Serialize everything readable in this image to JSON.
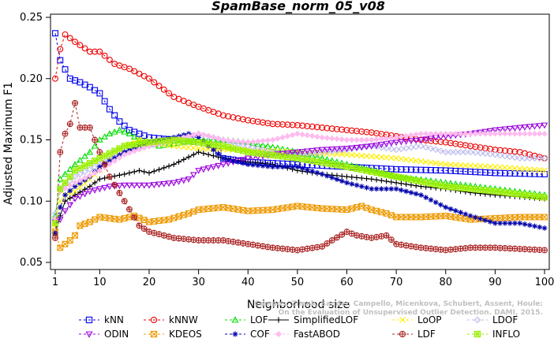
{
  "chart_data": {
    "type": "line",
    "title": "SpamBase_norm_05_v08",
    "xlabel": "Neighborhood size",
    "ylabel": "Adjusted Maximum F1",
    "xlim": [
      1,
      100
    ],
    "ylim": [
      0.05,
      0.25
    ],
    "xticks": [
      1,
      10,
      20,
      30,
      40,
      50,
      60,
      70,
      80,
      90,
      100
    ],
    "yticks": [
      0.05,
      0.1,
      0.15,
      0.2,
      0.25
    ],
    "ytick_labels": [
      "0.05",
      "0.10",
      "0.15",
      "0.20",
      "0.25"
    ],
    "legend_position": "bottom",
    "grid": false,
    "series": [
      {
        "name": "kNN",
        "color": "#0000ee",
        "marker": "square",
        "dash": true,
        "knots": [
          [
            1,
            0.237
          ],
          [
            2,
            0.215
          ],
          [
            4,
            0.2
          ],
          [
            6,
            0.197
          ],
          [
            8,
            0.193
          ],
          [
            10,
            0.188
          ],
          [
            12,
            0.175
          ],
          [
            14,
            0.165
          ],
          [
            16,
            0.158
          ],
          [
            20,
            0.152
          ],
          [
            25,
            0.15
          ],
          [
            30,
            0.148
          ],
          [
            33,
            0.146
          ],
          [
            35,
            0.135
          ],
          [
            40,
            0.132
          ],
          [
            50,
            0.13
          ],
          [
            60,
            0.128
          ],
          [
            70,
            0.126
          ],
          [
            80,
            0.125
          ],
          [
            90,
            0.123
          ],
          [
            100,
            0.122
          ]
        ]
      },
      {
        "name": "kNNW",
        "color": "#ee0000",
        "marker": "circle",
        "dash": true,
        "knots": [
          [
            1,
            0.2
          ],
          [
            2,
            0.224
          ],
          [
            3,
            0.236
          ],
          [
            5,
            0.23
          ],
          [
            8,
            0.222
          ],
          [
            10,
            0.222
          ],
          [
            13,
            0.212
          ],
          [
            16,
            0.208
          ],
          [
            20,
            0.2
          ],
          [
            25,
            0.185
          ],
          [
            30,
            0.177
          ],
          [
            35,
            0.17
          ],
          [
            40,
            0.166
          ],
          [
            45,
            0.163
          ],
          [
            50,
            0.162
          ],
          [
            55,
            0.16
          ],
          [
            60,
            0.158
          ],
          [
            65,
            0.156
          ],
          [
            70,
            0.153
          ],
          [
            75,
            0.15
          ],
          [
            80,
            0.148
          ],
          [
            85,
            0.145
          ],
          [
            90,
            0.142
          ],
          [
            95,
            0.14
          ],
          [
            100,
            0.135
          ]
        ]
      },
      {
        "name": "LOF",
        "color": "#00dd00",
        "marker": "triangle-up",
        "dash": true,
        "knots": [
          [
            1,
            0.088
          ],
          [
            2,
            0.118
          ],
          [
            3,
            0.122
          ],
          [
            5,
            0.13
          ],
          [
            8,
            0.14
          ],
          [
            10,
            0.15
          ],
          [
            12,
            0.155
          ],
          [
            14,
            0.158
          ],
          [
            16,
            0.155
          ],
          [
            18,
            0.15
          ],
          [
            22,
            0.145
          ],
          [
            30,
            0.15
          ],
          [
            35,
            0.15
          ],
          [
            40,
            0.148
          ],
          [
            50,
            0.14
          ],
          [
            60,
            0.13
          ],
          [
            70,
            0.12
          ],
          [
            80,
            0.115
          ],
          [
            90,
            0.11
          ],
          [
            100,
            0.105
          ]
        ]
      },
      {
        "name": "SimplifiedLOF",
        "color": "#000000",
        "marker": "plus",
        "dash": false,
        "knots": [
          [
            1,
            0.072
          ],
          [
            2,
            0.088
          ],
          [
            3,
            0.1
          ],
          [
            5,
            0.105
          ],
          [
            8,
            0.112
          ],
          [
            10,
            0.118
          ],
          [
            15,
            0.122
          ],
          [
            18,
            0.125
          ],
          [
            20,
            0.123
          ],
          [
            25,
            0.13
          ],
          [
            30,
            0.14
          ],
          [
            35,
            0.135
          ],
          [
            40,
            0.132
          ],
          [
            45,
            0.13
          ],
          [
            50,
            0.125
          ],
          [
            55,
            0.122
          ],
          [
            60,
            0.12
          ],
          [
            65,
            0.118
          ],
          [
            70,
            0.115
          ],
          [
            75,
            0.112
          ],
          [
            80,
            0.11
          ],
          [
            85,
            0.107
          ],
          [
            90,
            0.105
          ],
          [
            100,
            0.102
          ]
        ]
      },
      {
        "name": "LoOP",
        "color": "#ffee00",
        "marker": "cross",
        "dash": true,
        "knots": [
          [
            1,
            0.08
          ],
          [
            2,
            0.1
          ],
          [
            3,
            0.105
          ],
          [
            5,
            0.108
          ],
          [
            8,
            0.118
          ],
          [
            10,
            0.125
          ],
          [
            12,
            0.135
          ],
          [
            15,
            0.145
          ],
          [
            18,
            0.15
          ],
          [
            20,
            0.148
          ],
          [
            25,
            0.145
          ],
          [
            30,
            0.143
          ],
          [
            35,
            0.142
          ],
          [
            40,
            0.142
          ],
          [
            50,
            0.14
          ],
          [
            60,
            0.138
          ],
          [
            70,
            0.135
          ],
          [
            80,
            0.13
          ],
          [
            90,
            0.128
          ],
          [
            100,
            0.125
          ]
        ]
      },
      {
        "name": "LDOF",
        "color": "#bbbbee",
        "marker": "diamond",
        "dash": true,
        "knots": [
          [
            1,
            0.09
          ],
          [
            2,
            0.11
          ],
          [
            5,
            0.12
          ],
          [
            10,
            0.13
          ],
          [
            15,
            0.14
          ],
          [
            20,
            0.145
          ],
          [
            25,
            0.15
          ],
          [
            30,
            0.155
          ],
          [
            35,
            0.15
          ],
          [
            40,
            0.145
          ],
          [
            45,
            0.14
          ],
          [
            50,
            0.138
          ],
          [
            55,
            0.14
          ],
          [
            60,
            0.142
          ],
          [
            65,
            0.145
          ],
          [
            70,
            0.142
          ],
          [
            75,
            0.145
          ],
          [
            80,
            0.14
          ],
          [
            85,
            0.14
          ],
          [
            90,
            0.138
          ],
          [
            95,
            0.135
          ],
          [
            100,
            0.135
          ]
        ]
      },
      {
        "name": "ODIN",
        "color": "#9900dd",
        "marker": "triangle-down",
        "dash": true,
        "knots": [
          [
            1,
            0.083
          ],
          [
            2,
            0.085
          ],
          [
            3,
            0.092
          ],
          [
            5,
            0.102
          ],
          [
            8,
            0.108
          ],
          [
            12,
            0.112
          ],
          [
            15,
            0.113
          ],
          [
            20,
            0.113
          ],
          [
            25,
            0.115
          ],
          [
            28,
            0.118
          ],
          [
            30,
            0.125
          ],
          [
            35,
            0.13
          ],
          [
            40,
            0.135
          ],
          [
            45,
            0.138
          ],
          [
            50,
            0.14
          ],
          [
            55,
            0.142
          ],
          [
            60,
            0.143
          ],
          [
            65,
            0.145
          ],
          [
            70,
            0.148
          ],
          [
            75,
            0.15
          ],
          [
            80,
            0.153
          ],
          [
            85,
            0.155
          ],
          [
            90,
            0.158
          ],
          [
            95,
            0.16
          ],
          [
            100,
            0.162
          ]
        ]
      },
      {
        "name": "KDEOS",
        "color": "#ee9900",
        "marker": "square-x",
        "dash": true,
        "knots": [
          [
            1,
            0.075
          ],
          [
            2,
            0.062
          ],
          [
            3,
            0.065
          ],
          [
            4,
            0.068
          ],
          [
            5,
            0.072
          ],
          [
            6,
            0.08
          ],
          [
            8,
            0.083
          ],
          [
            10,
            0.087
          ],
          [
            14,
            0.085
          ],
          [
            17,
            0.088
          ],
          [
            20,
            0.083
          ],
          [
            24,
            0.085
          ],
          [
            28,
            0.09
          ],
          [
            30,
            0.093
          ],
          [
            35,
            0.095
          ],
          [
            40,
            0.092
          ],
          [
            45,
            0.093
          ],
          [
            50,
            0.096
          ],
          [
            55,
            0.094
          ],
          [
            60,
            0.093
          ],
          [
            63,
            0.096
          ],
          [
            65,
            0.093
          ],
          [
            68,
            0.09
          ],
          [
            70,
            0.087
          ],
          [
            75,
            0.087
          ],
          [
            80,
            0.088
          ],
          [
            85,
            0.085
          ],
          [
            90,
            0.086
          ],
          [
            95,
            0.087
          ],
          [
            100,
            0.087
          ]
        ]
      },
      {
        "name": "COF",
        "color": "#0000aa",
        "marker": "asterisk",
        "dash": true,
        "knots": [
          [
            1,
            0.074
          ],
          [
            2,
            0.095
          ],
          [
            3,
            0.105
          ],
          [
            5,
            0.112
          ],
          [
            8,
            0.12
          ],
          [
            10,
            0.128
          ],
          [
            15,
            0.14
          ],
          [
            20,
            0.148
          ],
          [
            25,
            0.152
          ],
          [
            28,
            0.155
          ],
          [
            30,
            0.152
          ],
          [
            35,
            0.135
          ],
          [
            40,
            0.13
          ],
          [
            45,
            0.128
          ],
          [
            50,
            0.128
          ],
          [
            55,
            0.122
          ],
          [
            60,
            0.115
          ],
          [
            65,
            0.11
          ],
          [
            70,
            0.11
          ],
          [
            75,
            0.105
          ],
          [
            80,
            0.095
          ],
          [
            85,
            0.088
          ],
          [
            90,
            0.082
          ],
          [
            95,
            0.082
          ],
          [
            100,
            0.078
          ]
        ]
      },
      {
        "name": "FastABOD",
        "color": "#ffbbee",
        "marker": "diamond-filled",
        "dash": true,
        "knots": [
          [
            1,
            0.086
          ],
          [
            2,
            0.108
          ],
          [
            5,
            0.115
          ],
          [
            10,
            0.125
          ],
          [
            15,
            0.138
          ],
          [
            20,
            0.145
          ],
          [
            25,
            0.15
          ],
          [
            30,
            0.155
          ],
          [
            35,
            0.15
          ],
          [
            40,
            0.148
          ],
          [
            45,
            0.15
          ],
          [
            50,
            0.155
          ],
          [
            55,
            0.152
          ],
          [
            60,
            0.15
          ],
          [
            65,
            0.15
          ],
          [
            70,
            0.152
          ],
          [
            75,
            0.155
          ],
          [
            80,
            0.155
          ],
          [
            85,
            0.155
          ],
          [
            90,
            0.155
          ],
          [
            95,
            0.155
          ],
          [
            100,
            0.155
          ]
        ]
      },
      {
        "name": "LDF",
        "color": "#aa2222",
        "marker": "circle-plus",
        "dash": true,
        "knots": [
          [
            1,
            0.07
          ],
          [
            2,
            0.14
          ],
          [
            3,
            0.155
          ],
          [
            4,
            0.163
          ],
          [
            5,
            0.18
          ],
          [
            6,
            0.16
          ],
          [
            8,
            0.16
          ],
          [
            10,
            0.14
          ],
          [
            12,
            0.12
          ],
          [
            15,
            0.1
          ],
          [
            18,
            0.08
          ],
          [
            20,
            0.075
          ],
          [
            25,
            0.07
          ],
          [
            30,
            0.068
          ],
          [
            35,
            0.068
          ],
          [
            40,
            0.065
          ],
          [
            45,
            0.062
          ],
          [
            50,
            0.06
          ],
          [
            55,
            0.063
          ],
          [
            57,
            0.068
          ],
          [
            60,
            0.075
          ],
          [
            62,
            0.072
          ],
          [
            65,
            0.07
          ],
          [
            68,
            0.072
          ],
          [
            70,
            0.065
          ],
          [
            75,
            0.062
          ],
          [
            80,
            0.06
          ],
          [
            85,
            0.062
          ],
          [
            90,
            0.062
          ],
          [
            95,
            0.061
          ],
          [
            100,
            0.06
          ]
        ]
      },
      {
        "name": "INFLO",
        "color": "#99ee00",
        "marker": "square-star",
        "dash": true,
        "knots": [
          [
            1,
            0.082
          ],
          [
            2,
            0.11
          ],
          [
            5,
            0.125
          ],
          [
            10,
            0.135
          ],
          [
            15,
            0.145
          ],
          [
            20,
            0.148
          ],
          [
            25,
            0.15
          ],
          [
            30,
            0.148
          ],
          [
            35,
            0.145
          ],
          [
            40,
            0.14
          ],
          [
            50,
            0.135
          ],
          [
            60,
            0.128
          ],
          [
            70,
            0.12
          ],
          [
            80,
            0.112
          ],
          [
            90,
            0.108
          ],
          [
            100,
            0.103
          ]
        ]
      }
    ],
    "legend_order": [
      "kNN",
      "kNNW",
      "LOF",
      "SimplifiedLOF",
      "LoOP",
      "LDOF",
      "ODIN",
      "KDEOS",
      "COF",
      "FastABOD",
      "LDF",
      "INFLO"
    ],
    "annotation": "Campos, Zimek, Sander, Campello, Micenkova, Schubert, Assent, Houle:\nOn the Evaluation of Unsupervised Outlier Detection. DAMI, 2015."
  }
}
